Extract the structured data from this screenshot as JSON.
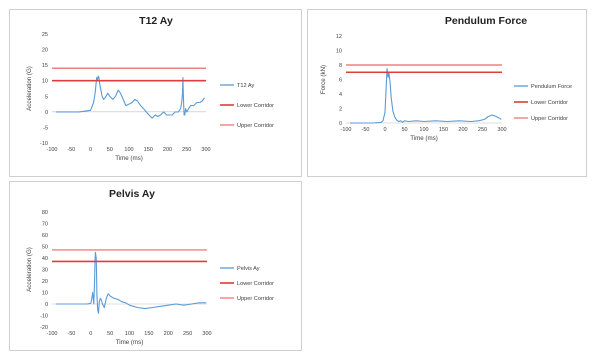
{
  "colors": {
    "series": "#5b9bd5",
    "lower": "#e03c3c",
    "upper": "#f08080",
    "grid": "#d9d9d9"
  },
  "chart_data": [
    {
      "type": "line",
      "title": "T12 Ay",
      "xlabel": "Time (ms)",
      "ylabel": "Acceleration (G)",
      "xlim": [
        -100,
        300
      ],
      "ylim": [
        -10,
        25
      ],
      "xticks": [
        "-100",
        "-50",
        "0",
        "50",
        "100",
        "150",
        "200",
        "250",
        "300"
      ],
      "yticks": [
        "-10",
        "-5",
        "0",
        "5",
        "10",
        "15",
        "20",
        "25"
      ],
      "grid": false,
      "legend": "right",
      "series": [
        {
          "name": "T12 Ay",
          "kind": "line",
          "x": [
            -90,
            -60,
            -30,
            0,
            8,
            12,
            16,
            18,
            20,
            22,
            24,
            27,
            30,
            34,
            38,
            45,
            50,
            58,
            65,
            72,
            78,
            85,
            92,
            100,
            108,
            115,
            122,
            130,
            138,
            145,
            152,
            160,
            168,
            175,
            182,
            190,
            198,
            205,
            212,
            220,
            228,
            234,
            237,
            239,
            240,
            241,
            242,
            243,
            244,
            245,
            247,
            250,
            255,
            260,
            268,
            276,
            284,
            290,
            296
          ],
          "y": [
            0,
            0,
            0,
            0.5,
            3,
            6,
            11,
            10,
            11.5,
            11,
            9,
            7,
            5,
            4,
            4.5,
            6,
            5,
            4,
            5,
            7,
            6,
            4,
            2,
            2.5,
            3,
            4,
            3.5,
            2,
            1,
            0,
            -1,
            -2,
            -1,
            -1.5,
            -1,
            0,
            -1,
            -1,
            -1,
            0,
            0,
            1,
            3,
            6,
            11,
            6,
            2,
            -1,
            0,
            -1,
            1,
            0,
            1,
            2,
            2,
            3,
            3,
            3.5,
            4.5
          ]
        },
        {
          "name": "Lower Corridor",
          "kind": "hline",
          "value": 10
        },
        {
          "name": "Upper Corridor",
          "kind": "hline",
          "value": 14
        }
      ]
    },
    {
      "type": "line",
      "title": "Pendulum Force",
      "xlabel": "Time (ms)",
      "ylabel": "Force (kN)",
      "xlim": [
        -100,
        300
      ],
      "ylim": [
        0,
        12
      ],
      "xticks": [
        "-100",
        "-50",
        "0",
        "50",
        "100",
        "150",
        "200",
        "250",
        "300"
      ],
      "yticks": [
        "0",
        "2",
        "4",
        "6",
        "8",
        "10",
        "12"
      ],
      "grid": false,
      "legend": "right",
      "series": [
        {
          "name": "Pendulum Force",
          "kind": "line",
          "x": [
            -90,
            -60,
            -30,
            -10,
            -5,
            0,
            3,
            5,
            8,
            10,
            13,
            16,
            20,
            25,
            30,
            35,
            40,
            45,
            50,
            60,
            80,
            100,
            130,
            160,
            190,
            220,
            240,
            255,
            265,
            275,
            285,
            292,
            298
          ],
          "y": [
            0,
            0,
            0,
            0.1,
            0.3,
            1.5,
            5,
            7.5,
            6.3,
            7,
            5.5,
            3.5,
            1.7,
            0.8,
            0.4,
            0.2,
            0.3,
            0.1,
            0.3,
            0.2,
            0.3,
            0.2,
            0.3,
            0.2,
            0.3,
            0.2,
            0.3,
            0.5,
            0.9,
            1.1,
            0.9,
            0.7,
            0.5
          ]
        },
        {
          "name": "Lower Corridor",
          "kind": "hline",
          "value": 7
        },
        {
          "name": "Upper Corridor",
          "kind": "hline",
          "value": 8
        }
      ]
    },
    {
      "type": "line",
      "title": "Pelvis Ay",
      "xlabel": "Time (ms)",
      "ylabel": "Acceleration (G)",
      "xlim": [
        -100,
        300
      ],
      "ylim": [
        -20,
        80
      ],
      "xticks": [
        "-100",
        "-50",
        "0",
        "50",
        "100",
        "150",
        "200",
        "250",
        "300"
      ],
      "yticks": [
        "-20",
        "-10",
        "0",
        "10",
        "20",
        "30",
        "40",
        "50",
        "60",
        "70",
        "80"
      ],
      "grid": false,
      "legend": "right",
      "series": [
        {
          "name": "Pelvis Ay",
          "kind": "line",
          "x": [
            -90,
            -60,
            -30,
            -10,
            0,
            3,
            5,
            7,
            8,
            10,
            11,
            12,
            14,
            15,
            16,
            18,
            20,
            22,
            25,
            28,
            30,
            35,
            40,
            45,
            50,
            60,
            70,
            80,
            90,
            100,
            120,
            140,
            160,
            180,
            200,
            220,
            240,
            260,
            280,
            298
          ],
          "y": [
            0,
            0,
            0,
            0,
            0.5,
            5,
            10,
            3,
            0,
            20,
            38,
            45,
            40,
            25,
            8,
            -5,
            -8,
            2,
            5,
            3,
            0,
            -3,
            5,
            9,
            7,
            5,
            4,
            2,
            1,
            -1,
            -3,
            -4,
            -3,
            -2,
            -1,
            0,
            -1,
            0,
            1,
            1
          ]
        },
        {
          "name": "Lower Corridor",
          "kind": "hline",
          "value": 37
        },
        {
          "name": "Upper Corridor",
          "kind": "hline",
          "value": 47
        }
      ]
    }
  ]
}
